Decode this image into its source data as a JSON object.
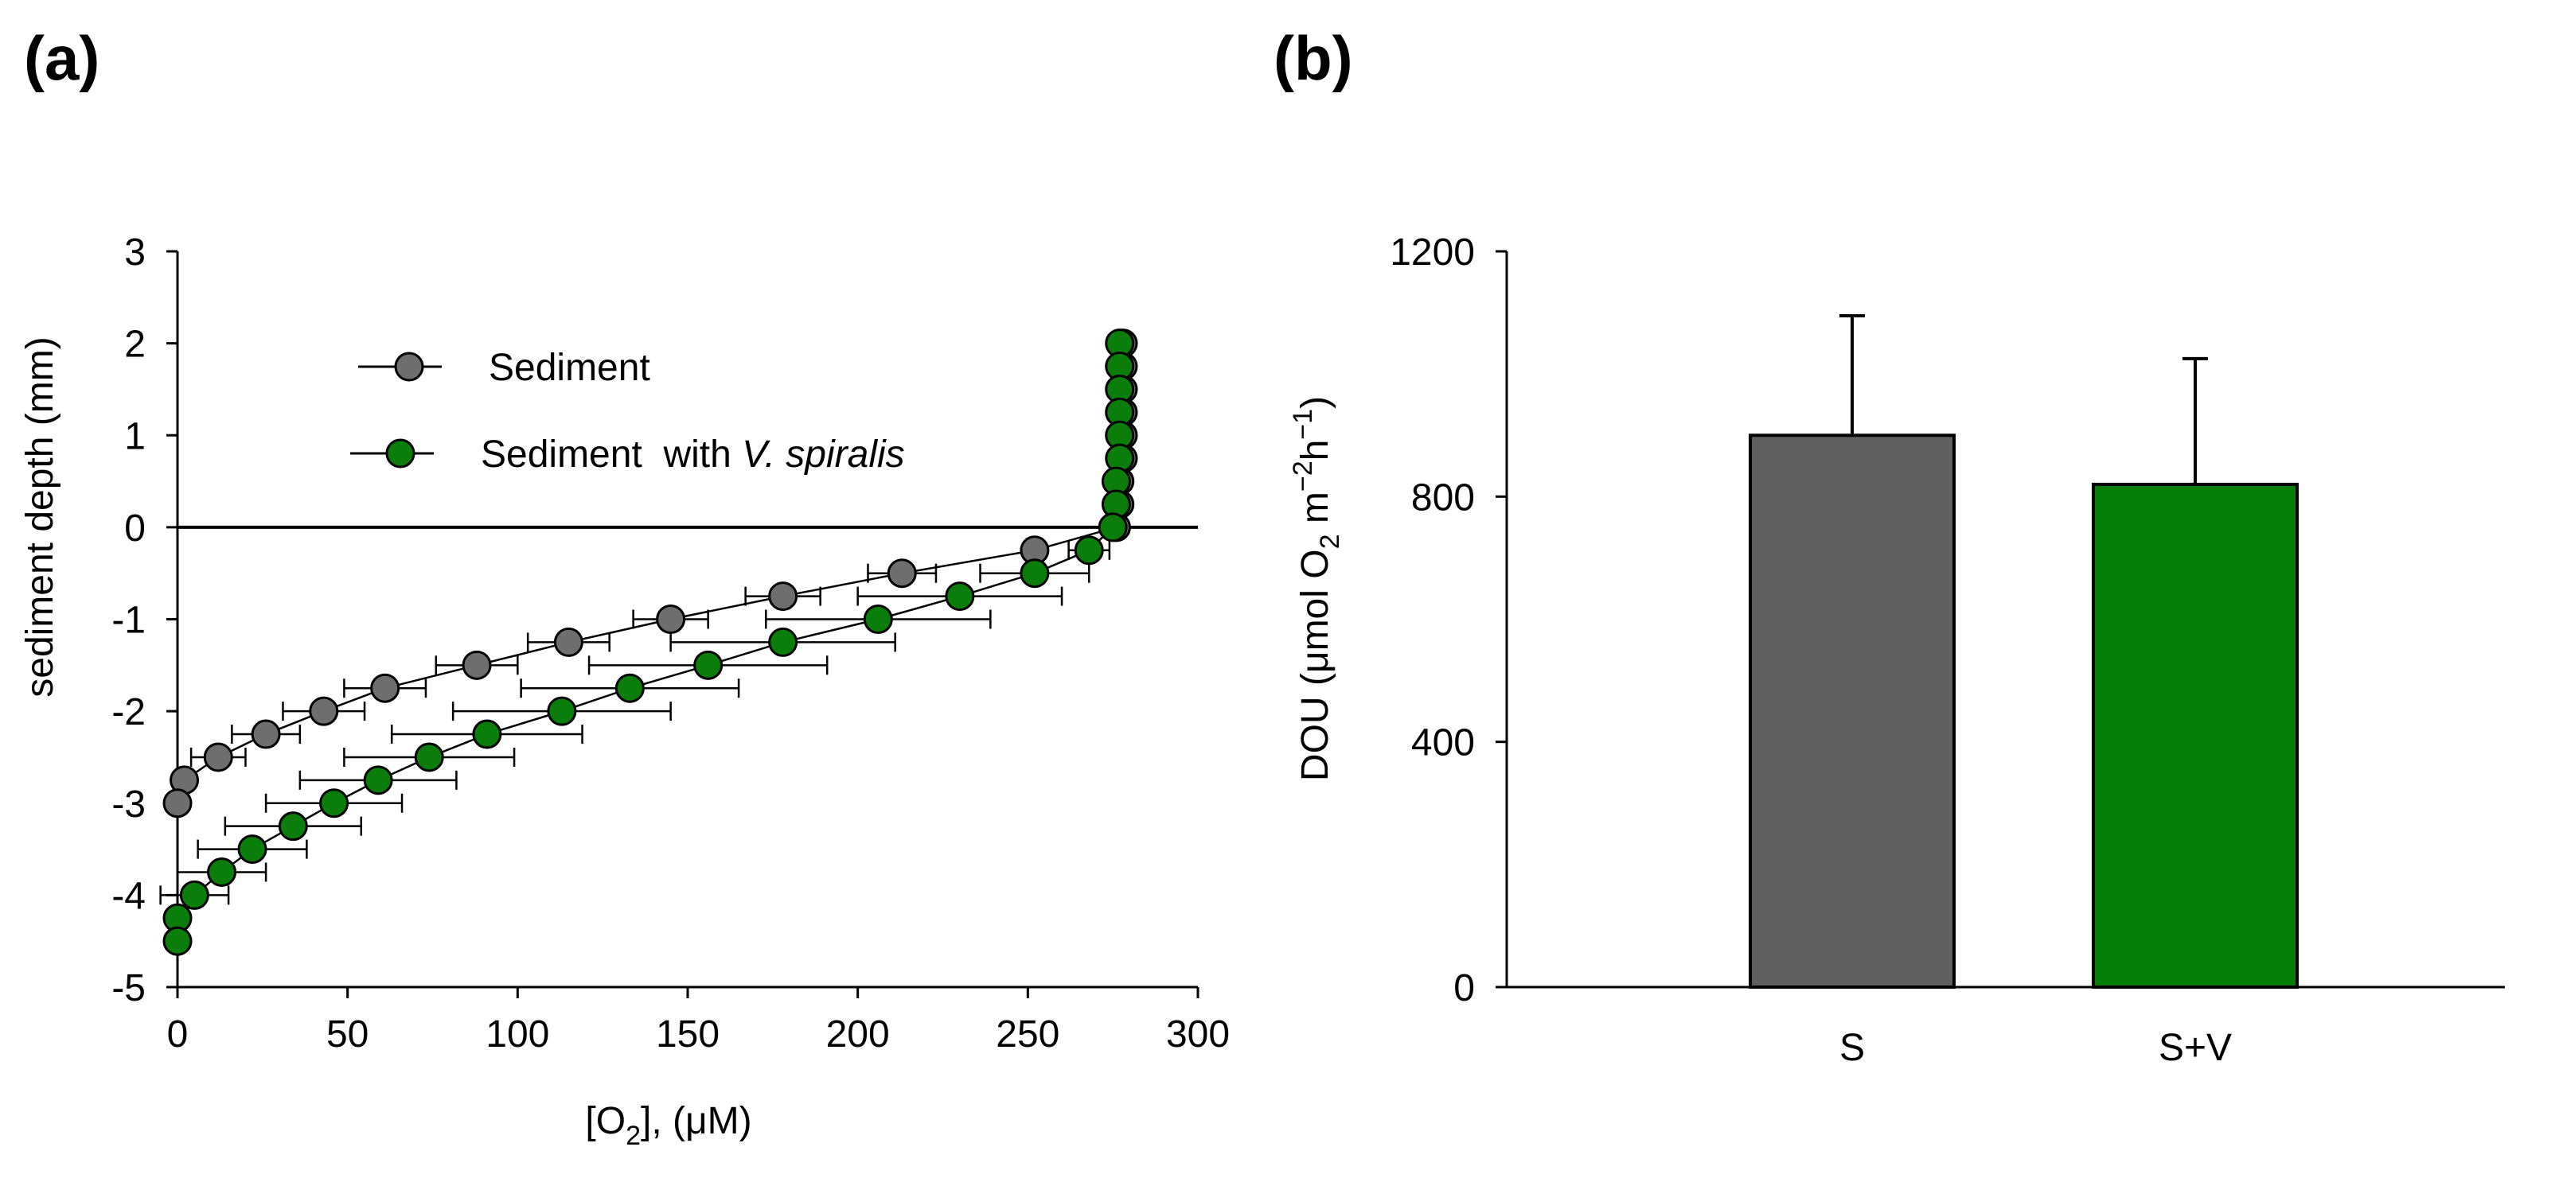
{
  "panels": {
    "a_label": "(a)",
    "b_label": "(b)"
  },
  "colors": {
    "sediment": "#6e6e6e",
    "vallisneria": "#0b7d0b",
    "bar_s": "#5f5f5f",
    "bar_sv": "#067d06",
    "axis": "#000000"
  },
  "chart_data": [
    {
      "type": "line",
      "panel": "a",
      "xlabel_parts": [
        "[O",
        "2",
        "], (μM)"
      ],
      "ylabel": "sediment depth (mm)",
      "xlim": [
        0,
        300
      ],
      "ylim": [
        -5,
        3
      ],
      "x_ticks": [
        0,
        50,
        100,
        150,
        200,
        250,
        300
      ],
      "y_ticks": [
        3,
        2,
        1,
        0,
        -1,
        -2,
        -3,
        -4,
        -5
      ],
      "reference_line_y": 0,
      "legend": {
        "placement": "top-left",
        "entries": [
          {
            "name": "Sediment"
          },
          {
            "name_prefix": "Sediment  with ",
            "name_italic": "V. spiralis"
          }
        ]
      },
      "series": [
        {
          "name": "Sediment",
          "color_key": "sediment",
          "points": [
            {
              "depth": 2.0,
              "o2": 278
            },
            {
              "depth": 1.75,
              "o2": 278
            },
            {
              "depth": 1.5,
              "o2": 278
            },
            {
              "depth": 1.25,
              "o2": 278
            },
            {
              "depth": 1.0,
              "o2": 278
            },
            {
              "depth": 0.75,
              "o2": 278
            },
            {
              "depth": 0.5,
              "o2": 277
            },
            {
              "depth": 0.25,
              "o2": 277
            },
            {
              "depth": 0.0,
              "o2": 276
            },
            {
              "depth": -0.25,
              "o2": 252,
              "err": 3
            },
            {
              "depth": -0.5,
              "o2": 213,
              "err": 10
            },
            {
              "depth": -0.75,
              "o2": 178,
              "err": 11
            },
            {
              "depth": -1.0,
              "o2": 145,
              "err": 11
            },
            {
              "depth": -1.25,
              "o2": 115,
              "err": 12
            },
            {
              "depth": -1.5,
              "o2": 88,
              "err": 12
            },
            {
              "depth": -1.75,
              "o2": 61,
              "err": 12
            },
            {
              "depth": -2.0,
              "o2": 43,
              "err": 12
            },
            {
              "depth": -2.25,
              "o2": 26,
              "err": 10
            },
            {
              "depth": -2.5,
              "o2": 12,
              "err": 8
            },
            {
              "depth": -2.75,
              "o2": 2,
              "err": 2
            },
            {
              "depth": -3.0,
              "o2": 0
            }
          ]
        },
        {
          "name": "Sediment with V. spiralis",
          "color_key": "vallisneria",
          "points": [
            {
              "depth": 2.0,
              "o2": 277
            },
            {
              "depth": 1.75,
              "o2": 277
            },
            {
              "depth": 1.5,
              "o2": 277
            },
            {
              "depth": 1.25,
              "o2": 277
            },
            {
              "depth": 1.0,
              "o2": 277
            },
            {
              "depth": 0.75,
              "o2": 277
            },
            {
              "depth": 0.5,
              "o2": 276
            },
            {
              "depth": 0.25,
              "o2": 276
            },
            {
              "depth": 0.0,
              "o2": 275
            },
            {
              "depth": -0.25,
              "o2": 268,
              "err": 6
            },
            {
              "depth": -0.5,
              "o2": 252,
              "err": 16
            },
            {
              "depth": -0.75,
              "o2": 230,
              "err": 30
            },
            {
              "depth": -1.0,
              "o2": 206,
              "err": 33
            },
            {
              "depth": -1.25,
              "o2": 178,
              "err": 33
            },
            {
              "depth": -1.5,
              "o2": 156,
              "err": 35
            },
            {
              "depth": -1.75,
              "o2": 133,
              "err": 32
            },
            {
              "depth": -2.0,
              "o2": 113,
              "err": 32
            },
            {
              "depth": -2.25,
              "o2": 91,
              "err": 28
            },
            {
              "depth": -2.5,
              "o2": 74,
              "err": 25
            },
            {
              "depth": -2.75,
              "o2": 59,
              "err": 23
            },
            {
              "depth": -3.0,
              "o2": 46,
              "err": 20
            },
            {
              "depth": -3.25,
              "o2": 34,
              "err": 20
            },
            {
              "depth": -3.5,
              "o2": 22,
              "err": 16
            },
            {
              "depth": -3.75,
              "o2": 13,
              "err": 13
            },
            {
              "depth": -4.0,
              "o2": 5,
              "err": 10
            },
            {
              "depth": -4.25,
              "o2": 0
            },
            {
              "depth": -4.5,
              "o2": 0
            }
          ]
        }
      ]
    },
    {
      "type": "bar",
      "panel": "b",
      "ylabel_parts": [
        "DOU (μmol O",
        "2",
        " m",
        "−2",
        "h",
        "−1",
        ")"
      ],
      "ylim": [
        0,
        1200
      ],
      "y_ticks": [
        0,
        400,
        800,
        1200
      ],
      "categories": [
        "S",
        "S+V"
      ],
      "values": [
        900,
        820
      ],
      "errors": [
        195,
        205
      ],
      "color_keys": [
        "bar_s",
        "bar_sv"
      ]
    }
  ]
}
